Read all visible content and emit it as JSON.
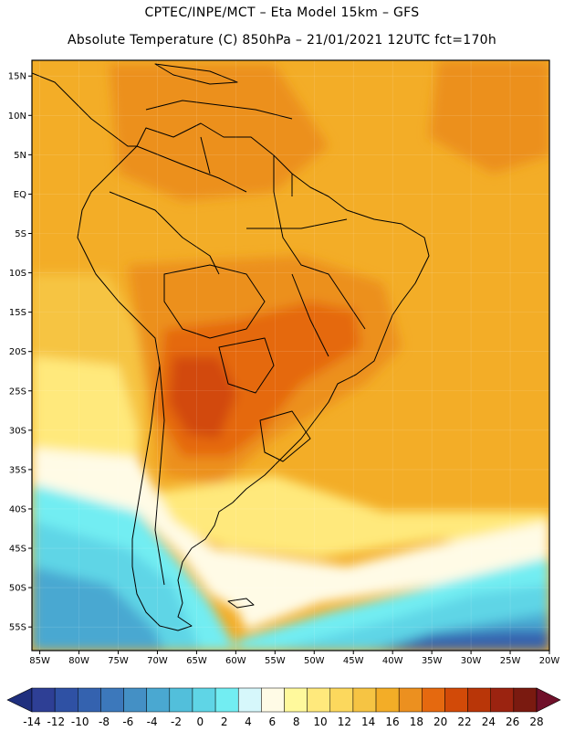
{
  "header": {
    "title_line1": "CPTEC/INPE/MCT –  Eta Model 15km – GFS",
    "title_line2": "Absolute Temperature (C) 850hPa – 21/01/2021 12UTC fct=170h"
  },
  "map": {
    "lon_range": [
      -86,
      -20
    ],
    "lat_range": [
      -58,
      17
    ],
    "lat_ticks": [
      {
        "value": 15,
        "label": "15N"
      },
      {
        "value": 10,
        "label": "10N"
      },
      {
        "value": 5,
        "label": "5N"
      },
      {
        "value": 0,
        "label": "EQ"
      },
      {
        "value": -5,
        "label": "5S"
      },
      {
        "value": -10,
        "label": "10S"
      },
      {
        "value": -15,
        "label": "15S"
      },
      {
        "value": -20,
        "label": "20S"
      },
      {
        "value": -25,
        "label": "25S"
      },
      {
        "value": -30,
        "label": "30S"
      },
      {
        "value": -35,
        "label": "35S"
      },
      {
        "value": -40,
        "label": "40S"
      },
      {
        "value": -45,
        "label": "45S"
      },
      {
        "value": -50,
        "label": "50S"
      },
      {
        "value": -55,
        "label": "55S"
      }
    ],
    "lon_ticks": [
      {
        "value": -85,
        "label": "85W"
      },
      {
        "value": -80,
        "label": "80W"
      },
      {
        "value": -75,
        "label": "75W"
      },
      {
        "value": -70,
        "label": "70W"
      },
      {
        "value": -65,
        "label": "65W"
      },
      {
        "value": -60,
        "label": "60W"
      },
      {
        "value": -55,
        "label": "55W"
      },
      {
        "value": -50,
        "label": "50W"
      },
      {
        "value": -45,
        "label": "45W"
      },
      {
        "value": -40,
        "label": "40W"
      },
      {
        "value": -35,
        "label": "35W"
      },
      {
        "value": -30,
        "label": "30W"
      },
      {
        "value": -25,
        "label": "25W"
      },
      {
        "value": -20,
        "label": "20W"
      }
    ]
  },
  "colorbar": {
    "labels": [
      "-14",
      "-12",
      "-10",
      "-8",
      "-6",
      "-4",
      "-2",
      "0",
      "2",
      "4",
      "6",
      "8",
      "10",
      "12",
      "14",
      "16",
      "18",
      "20",
      "22",
      "24",
      "26",
      "28"
    ],
    "colors": [
      "#2e3f95",
      "#2f51a4",
      "#3462af",
      "#3c78bb",
      "#4490c5",
      "#4aa8d1",
      "#52bfdb",
      "#5fd5e6",
      "#72edf2",
      "#d6f7fb",
      "#fffbe6",
      "#fff99c",
      "#ffe97c",
      "#fcd85d",
      "#f6c443",
      "#f3ad27",
      "#ec901f",
      "#e5690f",
      "#d24a08",
      "#b93608",
      "#9b2310",
      "#7a1a10"
    ],
    "left_arrow_color": "#1f2f7e",
    "right_arrow_color": "#70102a"
  },
  "field_colors": {
    "deep_blue": "#3462af",
    "mid_blue": "#4aa8d1",
    "light_blue": "#5fd5e6",
    "cyan": "#72edf2",
    "pale": "#fffbe6",
    "yellow": "#ffe97c",
    "gold": "#f6c443",
    "orange": "#f3ad27",
    "dark_orange": "#ec901f",
    "red_orange": "#e5690f",
    "hot": "#d24a08"
  }
}
